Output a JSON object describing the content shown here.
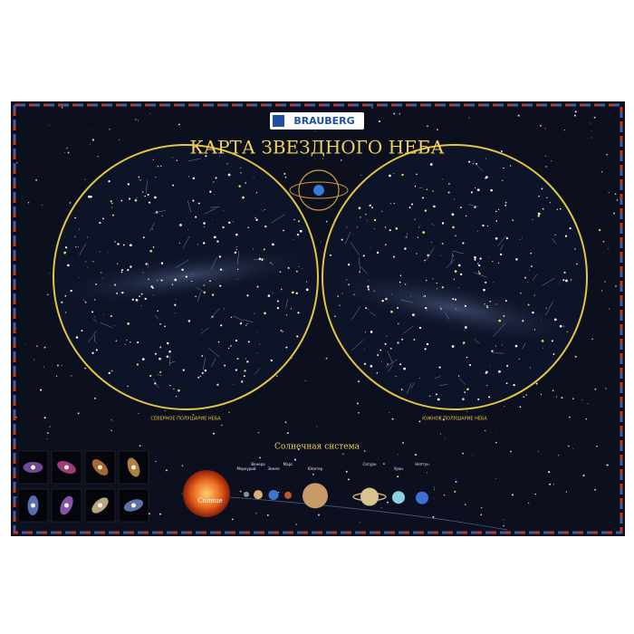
{
  "brand": "BRAUBERG",
  "title": "КАРТА ЗВЕЗДНОГО НЕБА",
  "hemispheres": [
    {
      "label": "СЕВЕРНОЕ ПОЛУШАРИЕ НЕБА"
    },
    {
      "label": "ЮЖНОЕ ПОЛУШАРИЕ НЕБА"
    }
  ],
  "solar_system": {
    "title": "Солнечная система",
    "sun": "Солнце",
    "planets": [
      "Меркурий",
      "Венера",
      "Земля",
      "Марс",
      "Юпитер",
      "Сатурн",
      "Уран",
      "Нептун"
    ]
  }
}
